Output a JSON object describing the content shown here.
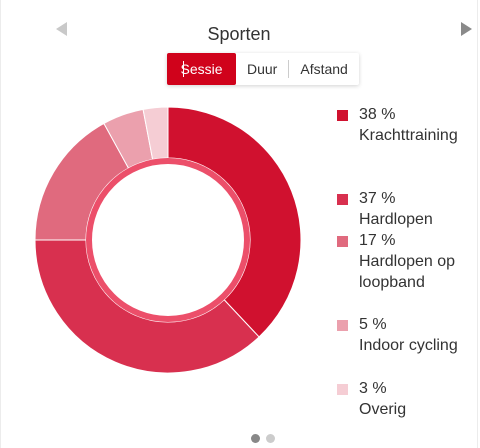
{
  "header": {
    "title": "Sporten",
    "prev_icon": "chevron-left-icon",
    "next_icon": "chevron-right-icon"
  },
  "toggle": {
    "options": [
      "Sessie",
      "Duur",
      "Afstand"
    ],
    "selected": "Sessie"
  },
  "chart_data": {
    "type": "pie",
    "categories": [
      "Krachttraining",
      "Hardlopen",
      "Hardlopen op loopband",
      "Indoor cycling",
      "Overig"
    ],
    "values": [
      38,
      37,
      17,
      5,
      3
    ],
    "labels": [
      "38 %",
      "37 %",
      "17 %",
      "5 %",
      "3 %"
    ],
    "colors": [
      "#d0112f",
      "#d8304f",
      "#e06a7e",
      "#eba0ad",
      "#f5cdd4"
    ],
    "legend": "right"
  },
  "pager": {
    "count": 2,
    "active": 0,
    "active_color": "#888888",
    "inactive_color": "#cccccc"
  }
}
